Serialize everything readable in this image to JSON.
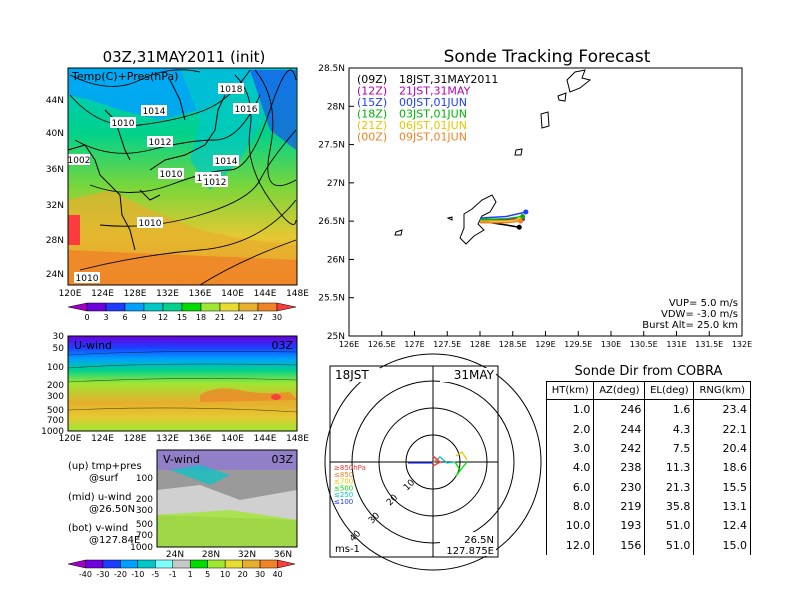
{
  "left": {
    "title": "03Z,31MAY2011 (init)",
    "map_label": "Temp(C)+Pres(hPa)",
    "lat_labels": [
      "44N",
      "40N",
      "36N",
      "32N",
      "28N",
      "24N"
    ],
    "lon_labels": [
      "120E",
      "124E",
      "128E",
      "132E",
      "136E",
      "140E",
      "144E",
      "148E"
    ],
    "isobar_labels": [
      "1018",
      "1016",
      "1014",
      "1014",
      "1012",
      "1012",
      "1010",
      "1010",
      "1010",
      "1010",
      "1012",
      "1002"
    ],
    "temp_colorbar": {
      "values": [
        "0",
        "3",
        "6",
        "9",
        "12",
        "15",
        "18",
        "21",
        "24",
        "27",
        "30"
      ],
      "colors": [
        "#a000c8",
        "#6e00dc",
        "#1e3cff",
        "#00a0ff",
        "#00c8c8",
        "#00d28c",
        "#00dc00",
        "#a0e632",
        "#e6dc32",
        "#e6af2d",
        "#f08228",
        "#fa3c3c"
      ]
    },
    "uwind": {
      "label": "U-wind",
      "time": "03Z",
      "y_labels": [
        "30",
        "50",
        "100",
        "200",
        "300",
        "500",
        "700",
        "1000"
      ],
      "x_labels": [
        "120E",
        "124E",
        "128E",
        "132E",
        "136E",
        "140E",
        "144E",
        "148E"
      ]
    },
    "vwind": {
      "label": "V-wind",
      "time": "03Z",
      "y_labels": [
        "100",
        "200",
        "300",
        "500",
        "700",
        "1000"
      ],
      "x_labels": [
        "24N",
        "28N",
        "32N",
        "36N"
      ]
    },
    "notes": [
      "(up) tmp+pres",
      "@surf",
      "(mid) u-wind",
      "@26.50N",
      "(bot) v-wind",
      "@127.84E"
    ],
    "wind_colorbar": {
      "values": [
        "-40",
        "-30",
        "-20",
        "-10",
        "-5",
        "-1",
        "1",
        "5",
        "10",
        "20",
        "30",
        "40"
      ],
      "colors": [
        "#a000c8",
        "#6e00dc",
        "#1e3cff",
        "#00a0ff",
        "#00c8c8",
        "#80ffff",
        "#c8c8c8",
        "#00dc00",
        "#a0e632",
        "#e6dc32",
        "#e6af2d",
        "#f08228",
        "#fa3c3c"
      ]
    }
  },
  "tracking": {
    "title": "Sonde Tracking Forecast",
    "lat_labels": [
      "28.5N",
      "28N",
      "27.5N",
      "27N",
      "26.5N",
      "26N",
      "25.5N",
      "25N"
    ],
    "lon_labels": [
      "126E",
      "126.5E",
      "127E",
      "127.5E",
      "128E",
      "128.5E",
      "129E",
      "129.5E",
      "130E",
      "130.5E",
      "131E",
      "131.5E",
      "132E"
    ],
    "legend": [
      {
        "tag": "(09Z)",
        "text": "18JST,31MAY2011",
        "color": "#000000"
      },
      {
        "tag": "(12Z)",
        "text": "21JST,31MAY",
        "color": "#b400b4"
      },
      {
        "tag": "(15Z)",
        "text": "00JST,01JUN",
        "color": "#1e3cff"
      },
      {
        "tag": "(18Z)",
        "text": "03JST,01JUN",
        "color": "#00b400"
      },
      {
        "tag": "(21Z)",
        "text": "06JST,01JUN",
        "color": "#e6c800"
      },
      {
        "tag": "(00Z)",
        "text": "09JST,01JUN",
        "color": "#f08228"
      }
    ],
    "params": [
      "VUP=  5.0  m/s",
      "VDW= -3.0  m/s",
      "Burst Alt=  25.0  km"
    ]
  },
  "polar": {
    "time": "18JST",
    "date": "31MAY",
    "ring_labels": [
      "10",
      "20",
      "30",
      "40"
    ],
    "alt_legend": [
      {
        "text": "≥850hPa",
        "color": "#fa3c3c"
      },
      {
        "text": "≤850",
        "color": "#f08228"
      },
      {
        "text": "≤700",
        "color": "#e6c800"
      },
      {
        "text": "≤500",
        "color": "#00dc00"
      },
      {
        "text": "≤250",
        "color": "#00c8c8"
      },
      {
        "text": "≤100",
        "color": "#1e3cff"
      }
    ],
    "unit": "ms-1",
    "location": [
      "26.5N",
      "127.875E"
    ]
  },
  "direction": {
    "title": "Sonde Dir from COBRA",
    "headers": [
      "HT(km)",
      "AZ(deg)",
      "EL(deg)",
      "RNG(km)"
    ],
    "rows": [
      [
        "1.0",
        "246",
        "1.6",
        "23.4"
      ],
      [
        "2.0",
        "244",
        "4.3",
        "22.1"
      ],
      [
        "3.0",
        "242",
        "7.5",
        "20.4"
      ],
      [
        "4.0",
        "238",
        "11.3",
        "18.6"
      ],
      [
        "6.0",
        "230",
        "21.3",
        "15.5"
      ],
      [
        "8.0",
        "219",
        "35.8",
        "13.1"
      ],
      [
        "10.0",
        "193",
        "51.0",
        "12.4"
      ],
      [
        "12.0",
        "156",
        "51.0",
        "15.0"
      ]
    ]
  },
  "chart_data": [
    {
      "type": "heatmap",
      "title": "03Z,31MAY2011 (init)",
      "subtitle": "Temp(C)+Pres(hPa)",
      "x": [
        "120E",
        "124E",
        "128E",
        "132E",
        "136E",
        "140E",
        "144E",
        "148E"
      ],
      "y": [
        "24N",
        "28N",
        "32N",
        "36N",
        "40N",
        "44N"
      ],
      "colorbar": [
        0,
        3,
        6,
        9,
        12,
        15,
        18,
        21,
        24,
        27,
        30
      ]
    },
    {
      "type": "line",
      "title": "Sonde Tracking Forecast",
      "xlim": [
        126,
        132
      ],
      "ylim": [
        25,
        28.5
      ],
      "series": [
        {
          "name": "18JST,31MAY2011",
          "x": [
            128.0,
            128.4,
            128.6
          ],
          "y": [
            26.5,
            26.45,
            26.42
          ]
        },
        {
          "name": "21JST,31MAY",
          "x": [
            128.0,
            128.4,
            128.65
          ],
          "y": [
            26.52,
            26.52,
            26.53
          ]
        },
        {
          "name": "00JST,01JUN",
          "x": [
            128.0,
            128.4,
            128.7
          ],
          "y": [
            26.54,
            26.56,
            26.62
          ]
        },
        {
          "name": "03JST,01JUN",
          "x": [
            128.0,
            128.4,
            128.65
          ],
          "y": [
            26.52,
            26.53,
            26.56
          ]
        },
        {
          "name": "06JST,01JUN",
          "x": [
            128.0,
            128.4,
            128.6
          ],
          "y": [
            26.5,
            26.5,
            26.52
          ]
        },
        {
          "name": "09JST,01JUN",
          "x": [
            128.0,
            128.4,
            128.62
          ],
          "y": [
            26.48,
            26.48,
            26.5
          ]
        }
      ]
    },
    {
      "type": "table",
      "title": "Sonde Dir from COBRA",
      "columns": [
        "HT(km)",
        "AZ(deg)",
        "EL(deg)",
        "RNG(km)"
      ],
      "rows": [
        [
          1.0,
          246,
          1.6,
          23.4
        ],
        [
          2.0,
          244,
          4.3,
          22.1
        ],
        [
          3.0,
          242,
          7.5,
          20.4
        ],
        [
          4.0,
          238,
          11.3,
          18.6
        ],
        [
          6.0,
          230,
          21.3,
          15.5
        ],
        [
          8.0,
          219,
          35.8,
          13.1
        ],
        [
          10.0,
          193,
          51.0,
          12.4
        ],
        [
          12.0,
          156,
          51.0,
          15.0
        ]
      ]
    }
  ]
}
